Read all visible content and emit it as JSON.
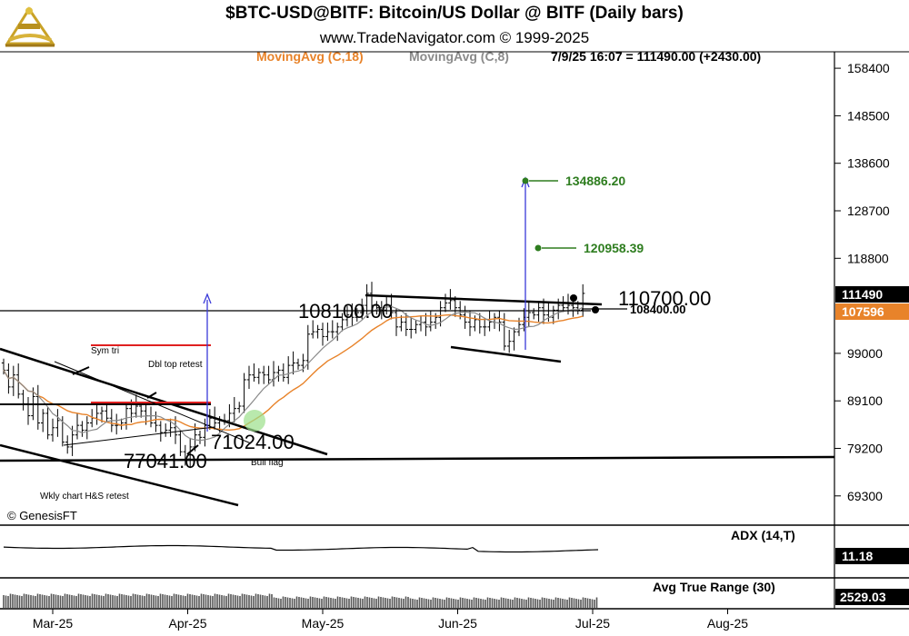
{
  "header": {
    "title": "$BTC-USD@BITF:  Bitcoin/US Dollar @ BITF  (Daily bars)",
    "subtitle": "www.TradeNavigator.com © 1999-2025",
    "ma18_label": "MovingAvg (C,18)",
    "ma8_label": "MovingAvg (C,8)",
    "quote": "7/9/25 16:07 = 111490.00 (+2430.00)"
  },
  "credit": "© GenesisFT",
  "colors": {
    "ma18": "#e8832a",
    "ma8": "#8a8a8a",
    "target": "#2e7d1f",
    "arrow": "#3a3ad8",
    "resistance": "#e02020",
    "price_tag": "#000000",
    "ma_tag": "#e8832a"
  },
  "chart_data": [
    {
      "type": "candlestick",
      "panel": "price",
      "y_ticks": [
        "158400",
        "148500",
        "138600",
        "128700",
        "118800",
        "99000",
        "89100",
        "79200",
        "69300"
      ],
      "ylim": [
        63000,
        165000
      ],
      "x_ticks": [
        "Mar-25",
        "Apr-25",
        "May-25",
        "Jun-25",
        "Jul-25",
        "Aug-25"
      ],
      "x_range": [
        "2025-02-20",
        "2025-08-31"
      ],
      "last_price_tag": "111490",
      "ma_tag": "107596",
      "series": [
        {
          "name": "MovingAvg (C,18)",
          "color": "#e8832a"
        },
        {
          "name": "MovingAvg (C,8)",
          "color": "#8a8a8a"
        }
      ],
      "closes": [
        95500,
        92000,
        94500,
        90500,
        88500,
        86000,
        90000,
        84500,
        86500,
        82000,
        83500,
        85000,
        80500,
        79500,
        82000,
        84000,
        83000,
        84500,
        85500,
        86500,
        87000,
        85500,
        84000,
        84000,
        84500,
        87500,
        86500,
        88000,
        87000,
        86000,
        84500,
        84000,
        82500,
        83000,
        83500,
        82000,
        78500,
        77000,
        79500,
        82000,
        81500,
        84000,
        85500,
        84500,
        85000,
        85000,
        86500,
        87500,
        88000,
        93500,
        94500,
        94000,
        95000,
        94500,
        93500,
        95000,
        95500,
        94000,
        96500,
        97000,
        96500,
        97500,
        103000,
        103500,
        104000,
        102500,
        103500,
        103500,
        104500,
        106000,
        107000,
        106500,
        107500,
        109000,
        111500,
        109000,
        108500,
        108000,
        109000,
        107500,
        104500,
        105500,
        104000,
        104000,
        105000,
        105500,
        104500,
        105500,
        106500,
        108500,
        109500,
        110000,
        108500,
        107000,
        105500,
        104500,
        106000,
        104500,
        104500,
        105500,
        106500,
        105500,
        100500,
        101500,
        103500,
        105000,
        106500,
        107500,
        107000,
        108500,
        107000,
        106500,
        108000,
        109000,
        108500,
        109000,
        108500,
        108000,
        111490
      ],
      "annotations": [
        {
          "text": "108100.00",
          "value": 108100
        },
        {
          "text": "110700.00",
          "value": 110700
        },
        {
          "text": "108400.00",
          "value": 108400
        },
        {
          "text": "77041.00",
          "value": 77041
        },
        {
          "text": "71024.00",
          "value": 71024
        },
        {
          "text": "134886.20",
          "value": 134886.2
        },
        {
          "text": "120958.39",
          "value": 120958.39
        },
        {
          "text": "Sym tri"
        },
        {
          "text": "Dbl top retest"
        },
        {
          "text": "Bull flag"
        },
        {
          "text": "Wkly chart H&S retest"
        }
      ]
    },
    {
      "type": "line",
      "panel": "ADX",
      "title": "ADX (14,T)",
      "value_tag": "11.18"
    },
    {
      "type": "bar",
      "panel": "ATR",
      "title": "Avg True Range (30)",
      "value_tag": "2529.03"
    }
  ]
}
